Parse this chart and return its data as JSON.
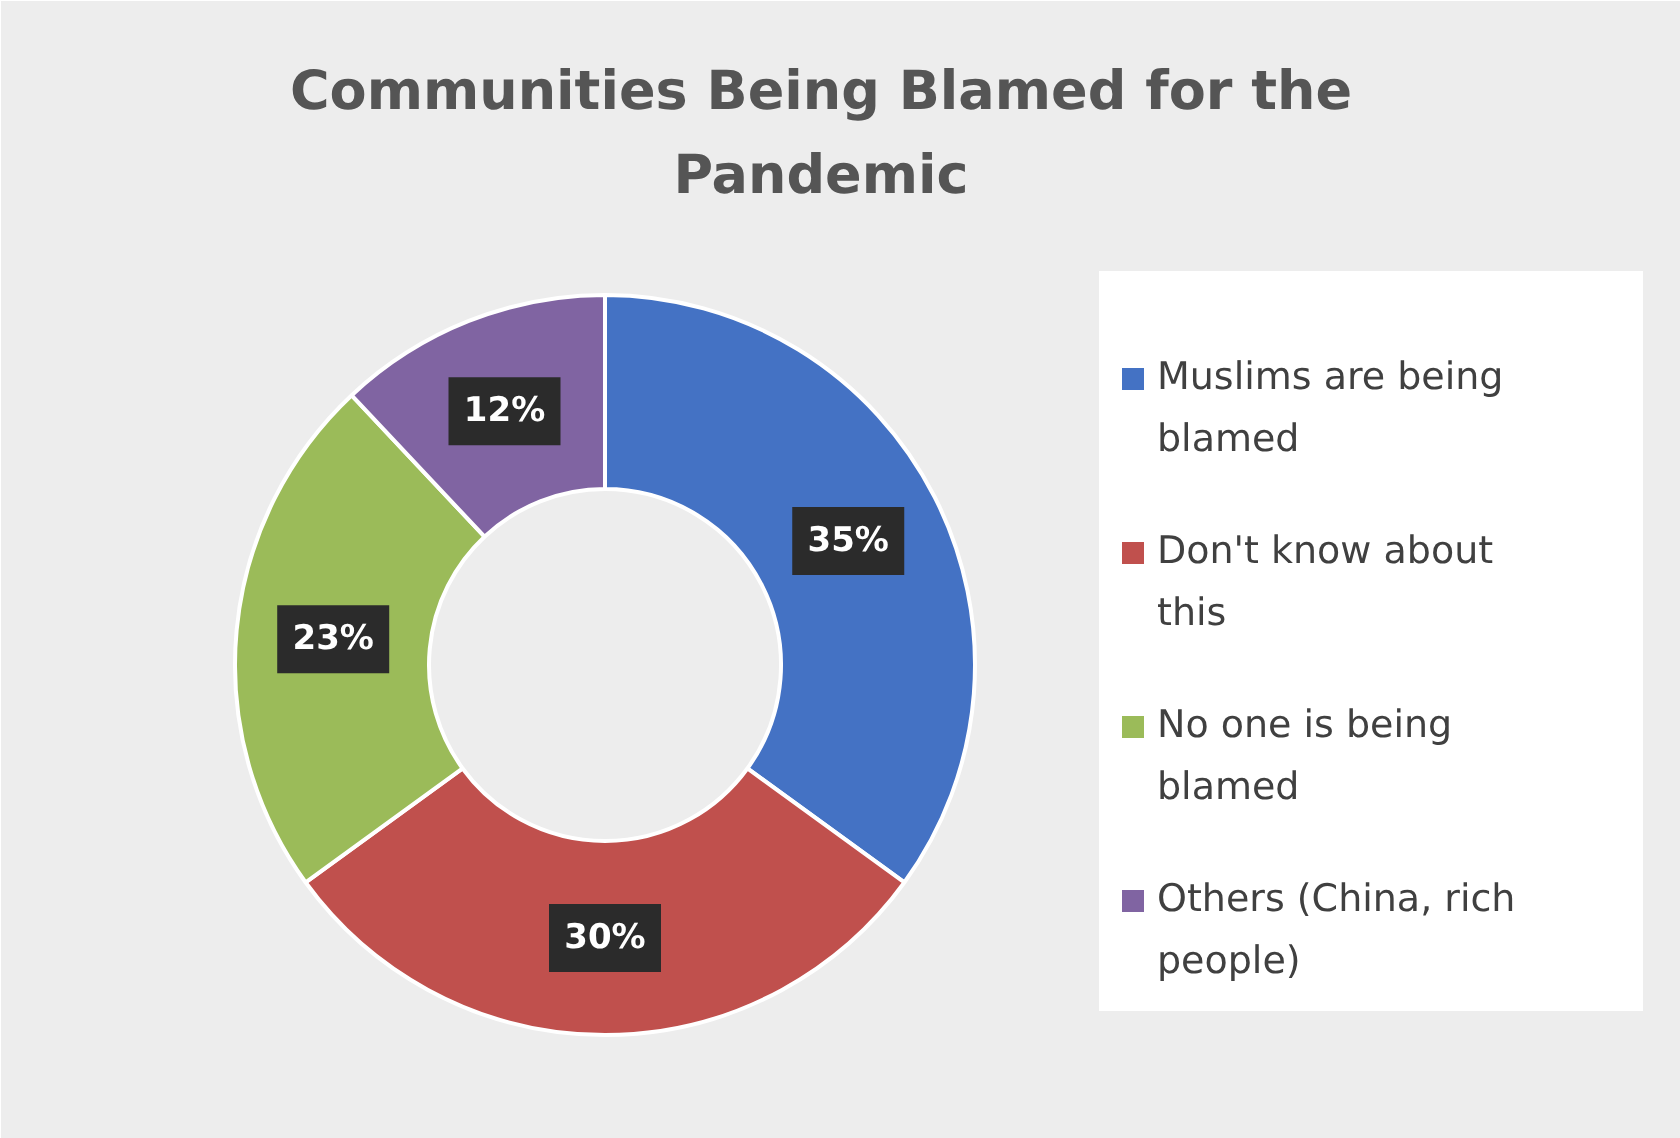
{
  "chart_data": {
    "type": "donut",
    "title": "Communities Being Blamed for the Pandemic",
    "categories": [
      "Muslims are being blamed",
      "Don't know about this",
      "No one is being blamed",
      "Others (China, rich people)"
    ],
    "values": [
      35,
      30,
      23,
      12
    ],
    "colors": [
      "#4472c4",
      "#c0504d",
      "#9bbb59",
      "#8064a2"
    ],
    "value_labels": [
      "35%",
      "30%",
      "23%",
      "12%"
    ],
    "legend": "right"
  }
}
